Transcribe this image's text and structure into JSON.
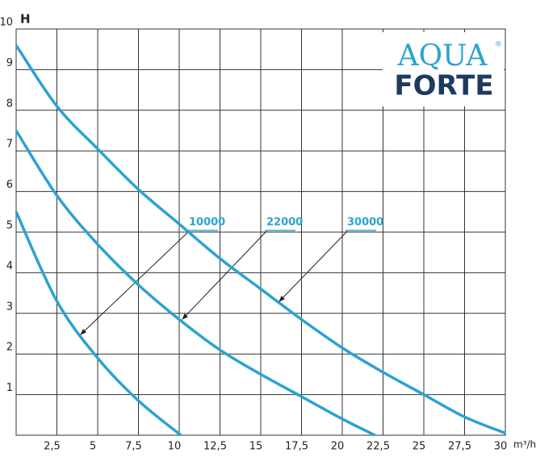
{
  "chart_data": {
    "type": "line",
    "y_label": "H",
    "x_label": "m³/h",
    "xlim": [
      0,
      30
    ],
    "ylim": [
      0,
      10
    ],
    "xticks": [
      {
        "value": 2.5,
        "label": "2,5"
      },
      5,
      {
        "value": 7.5,
        "label": "7,5"
      },
      10,
      {
        "value": 12.5,
        "label": "12,5"
      },
      15,
      {
        "value": 17.5,
        "label": "17,5"
      },
      20,
      {
        "value": 22.5,
        "label": "22,5"
      },
      25,
      {
        "value": 27.5,
        "label": "27,5"
      },
      30
    ],
    "yticks": [
      1,
      2,
      3,
      4,
      5,
      6,
      7,
      8,
      9,
      10
    ],
    "grid": true,
    "series": [
      {
        "name": "10000",
        "color": "#2aa3d2",
        "x": [
          0,
          2.5,
          5,
          7.5,
          10.1
        ],
        "values": [
          5.5,
          3.3,
          1.9,
          0.85,
          0
        ]
      },
      {
        "name": "22000",
        "color": "#2aa3d2",
        "x": [
          0,
          2.5,
          5,
          7.5,
          10,
          12.5,
          15,
          17.5,
          20,
          22
        ],
        "values": [
          7.5,
          5.9,
          4.7,
          3.7,
          2.85,
          2.1,
          1.5,
          0.95,
          0.4,
          0
        ]
      },
      {
        "name": "30000",
        "color": "#2aa3d2",
        "x": [
          0,
          2.5,
          5,
          7.5,
          10,
          12.5,
          15,
          17.5,
          20,
          22.5,
          25,
          27.5,
          30
        ],
        "values": [
          9.6,
          8.1,
          7.05,
          6.05,
          5.2,
          4.35,
          3.6,
          2.85,
          2.15,
          1.55,
          1.0,
          0.45,
          0.05
        ]
      }
    ]
  },
  "logo": {
    "line1": "AQUA",
    "line2": "FORTE"
  }
}
